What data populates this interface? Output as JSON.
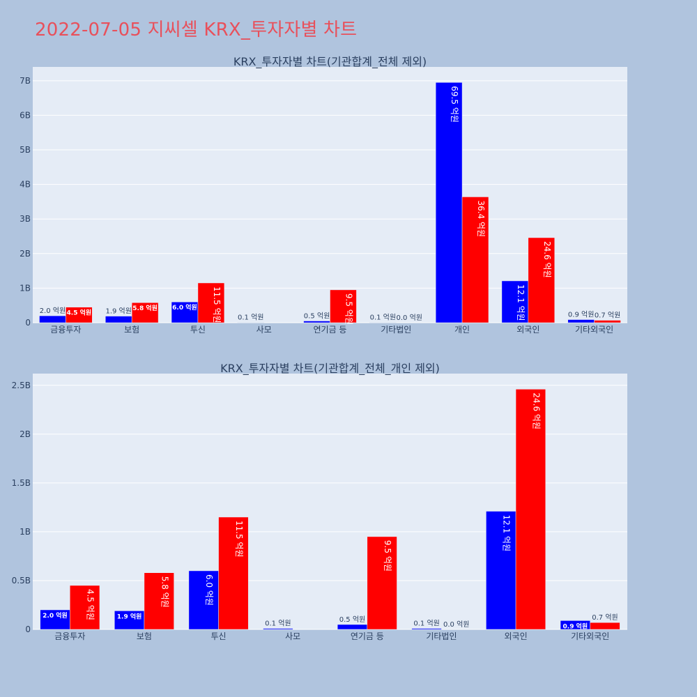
{
  "page_title": "2022-07-05 지씨셀 KRX_투자자별 차트",
  "colors": {
    "buy": "#0000ff",
    "sell": "#ff0000",
    "title": "#e8505b",
    "plot_bg": "#e5ecf6",
    "page_bg": "#b0c4de"
  },
  "chart_data": [
    {
      "type": "bar",
      "title": "KRX_투자자별 차트(기관합계_전체 제외)",
      "categories": [
        "금융투자",
        "보험",
        "투신",
        "사모",
        "연기금 등",
        "기타법인",
        "개인",
        "외국인",
        "기타외국인"
      ],
      "series": [
        {
          "values": [
            200000000,
            190000000,
            600000000,
            10000000,
            50000000,
            10000000,
            6950000000,
            1210000000,
            90000000
          ],
          "labels": [
            "2.0 억원",
            "1.9 억원",
            "6.0 억원",
            "0.1 억원",
            "0.5 억원",
            "0.1 억원",
            "69.5 억원",
            "12.1 억원",
            "0.9 억원"
          ]
        },
        {
          "values": [
            450000000,
            580000000,
            1150000000,
            0,
            950000000,
            0,
            3640000000,
            2460000000,
            70000000
          ],
          "labels": [
            "4.5 억원",
            "5.8 억원",
            "11.5 억원",
            "",
            "9.5 억원",
            "0.0 억원",
            "36.4 억원",
            "24.6 억원",
            "0.7 억원"
          ]
        }
      ],
      "yticks": [
        "0",
        "1B",
        "2B",
        "3B",
        "4B",
        "5B",
        "6B",
        "7B"
      ],
      "ylim": [
        0,
        7400000000
      ],
      "grid": true
    },
    {
      "type": "bar",
      "title": "KRX_투자자별 차트(기관합계_전체_개인 제외)",
      "categories": [
        "금융투자",
        "보험",
        "투신",
        "사모",
        "연기금 등",
        "기타법인",
        "외국인",
        "기타외국인"
      ],
      "series": [
        {
          "values": [
            200000000,
            190000000,
            600000000,
            10000000,
            50000000,
            10000000,
            1210000000,
            90000000
          ],
          "labels": [
            "2.0 억원",
            "1.9 억원",
            "6.0 억원",
            "0.1 억원",
            "0.5 억원",
            "0.1 억원",
            "12.1 억원",
            "0.9 억원"
          ]
        },
        {
          "values": [
            450000000,
            580000000,
            1150000000,
            0,
            950000000,
            0,
            2460000000,
            70000000
          ],
          "labels": [
            "4.5 억원",
            "5.8 억원",
            "11.5 억원",
            "",
            "9.5 억원",
            "0.0 억원",
            "24.6 억원",
            "0.7 억원"
          ]
        }
      ],
      "yticks": [
        "0",
        "0.5B",
        "1B",
        "1.5B",
        "2B",
        "2.5B"
      ],
      "ylim": [
        0,
        2620000000
      ],
      "grid": true
    }
  ]
}
